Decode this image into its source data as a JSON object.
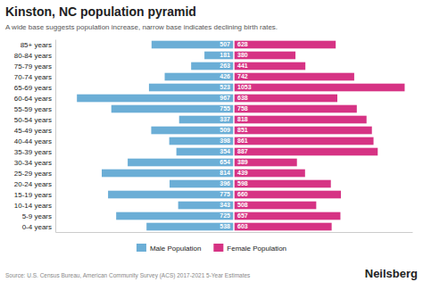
{
  "chart_data": {
    "type": "pyramid",
    "orientation": "horizontal",
    "title": "Kinston, NC population pyramid",
    "subtitle": "A wide base suggests population increase, narrow base indicates declining birth rates.",
    "categories": [
      "0-4 years",
      "5-9 years",
      "10-14 years",
      "15-19 years",
      "20-24 years",
      "25-29 years",
      "30-34 years",
      "35-39 years",
      "40-44 years",
      "45-49 years",
      "50-54 years",
      "55-59 years",
      "60-64 years",
      "65-69 years",
      "70-74 years",
      "75-79 years",
      "80-84 years",
      "85+ years"
    ],
    "series": [
      {
        "name": "Male Population",
        "color": "#6baed6",
        "values": [
          538,
          725,
          343,
          775,
          396,
          814,
          654,
          354,
          398,
          509,
          337,
          755,
          967,
          523,
          426,
          263,
          181,
          507
        ]
      },
      {
        "name": "Female Population",
        "color": "#d63384",
        "values": [
          603,
          657,
          508,
          660,
          598,
          439,
          389,
          887,
          861,
          851,
          818,
          758,
          638,
          1053,
          742,
          441,
          380,
          628
        ]
      }
    ],
    "xlim": [
      -1100,
      1100
    ],
    "tick_labels": "y",
    "data_labels": true,
    "legend": "bottom",
    "grid": false,
    "annotations": [
      "Source: U.S. Census Bureau, American Community Survey (ACS) 2017-2021 5-Year Estimates",
      "Neilsberg"
    ]
  }
}
